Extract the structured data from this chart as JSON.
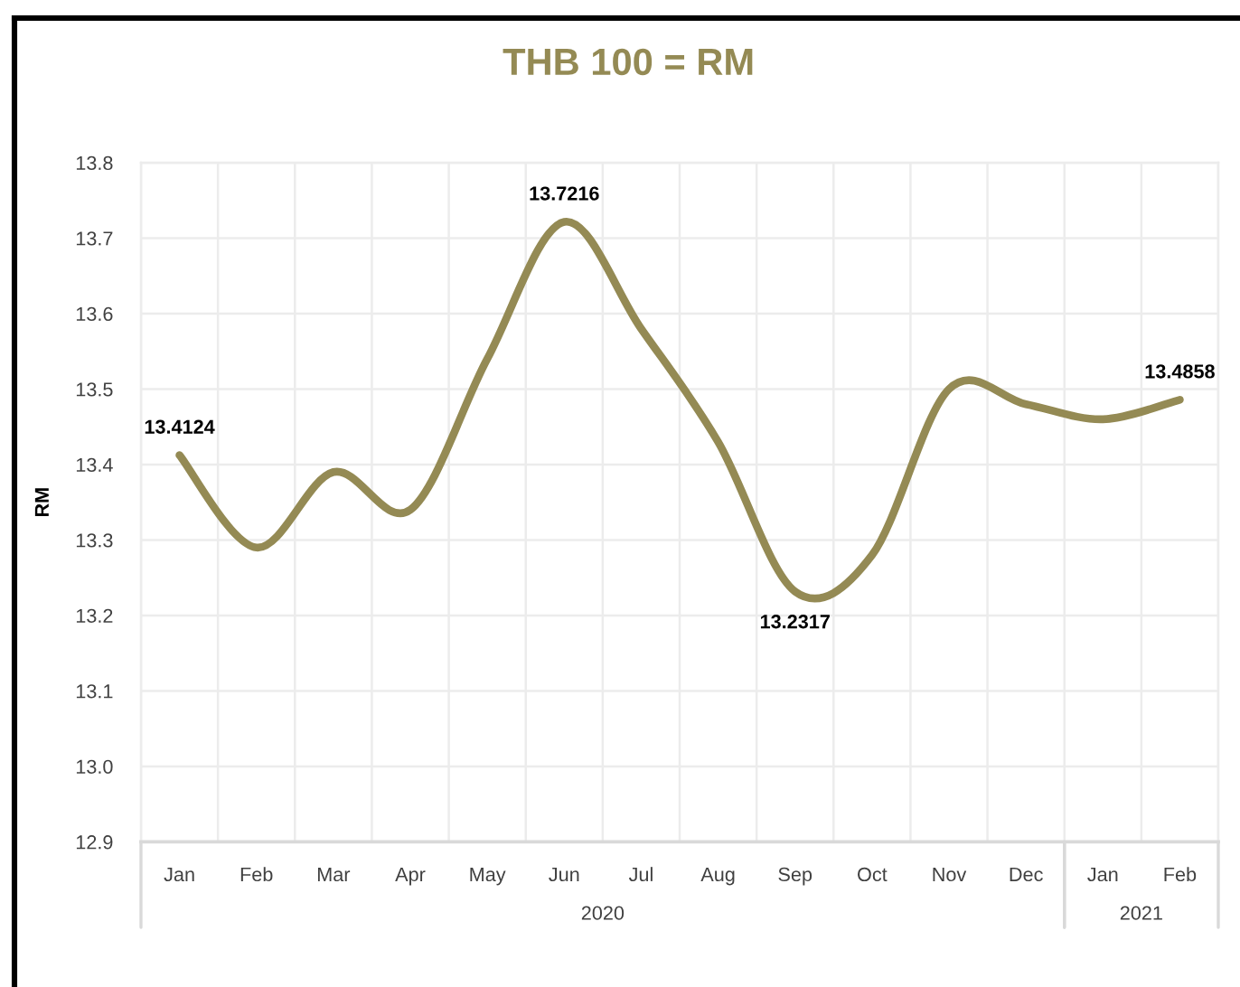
{
  "chart_data": {
    "type": "line",
    "title": "THB 100 = RM",
    "ylabel": "RM",
    "categories": [
      "Jan",
      "Feb",
      "Mar",
      "Apr",
      "May",
      "Jun",
      "Jul",
      "Aug",
      "Sep",
      "Oct",
      "Nov",
      "Dec",
      "Jan",
      "Feb"
    ],
    "values": [
      13.4124,
      13.29,
      13.39,
      13.34,
      13.54,
      13.7216,
      13.58,
      13.43,
      13.2317,
      13.28,
      13.5,
      13.48,
      13.46,
      13.4858
    ],
    "color": "#948a54",
    "value_labels": [
      "13.4124",
      null,
      null,
      null,
      null,
      "13.7216",
      null,
      null,
      "13.2317",
      null,
      null,
      null,
      null,
      "13.4858"
    ],
    "ylim": [
      12.9,
      13.8
    ],
    "yticks": [
      12.9,
      {
        "value": 13,
        "label": "13.0"
      },
      13.1,
      13.2,
      13.3,
      13.4,
      13.5,
      13.6,
      13.7,
      13.8
    ],
    "grid": true,
    "annotations": [
      "2020",
      "2021"
    ]
  }
}
